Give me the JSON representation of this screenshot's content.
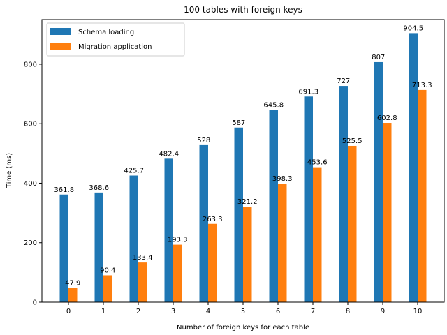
{
  "chart_data": {
    "type": "bar",
    "title": "100 tables with foreign keys",
    "xlabel": "Number of foreign keys for each table",
    "ylabel": "Time (ms)",
    "categories": [
      "0",
      "1",
      "2",
      "3",
      "4",
      "5",
      "6",
      "7",
      "8",
      "9",
      "10"
    ],
    "series": [
      {
        "name": "Schema loading",
        "color": "#1f77b4",
        "values": [
          361.8,
          368.6,
          425.7,
          482.4,
          528,
          587,
          645.8,
          691.3,
          727,
          807,
          904.5
        ],
        "labels": [
          "361.8",
          "368.6",
          "425.7",
          "482.4",
          "528",
          "587",
          "645.8",
          "691.3",
          "727",
          "807",
          "904.5"
        ]
      },
      {
        "name": "Migration application",
        "color": "#ff7f0e",
        "values": [
          47.9,
          90.4,
          133.4,
          193.3,
          263.3,
          321.2,
          398.3,
          453.6,
          525.5,
          602.8,
          713.3
        ],
        "labels": [
          "47.9",
          "90.4",
          "133.4",
          "193.3",
          "263.3",
          "321.2",
          "398.3",
          "453.6",
          "525.5",
          "602.8",
          "713.3"
        ]
      }
    ],
    "yticks": [
      0,
      200,
      400,
      600,
      800
    ],
    "ytick_labels": [
      "0",
      "200",
      "400",
      "600",
      "800"
    ],
    "ylim": [
      0,
      950
    ],
    "grid": false,
    "legend_position": "top-left"
  }
}
